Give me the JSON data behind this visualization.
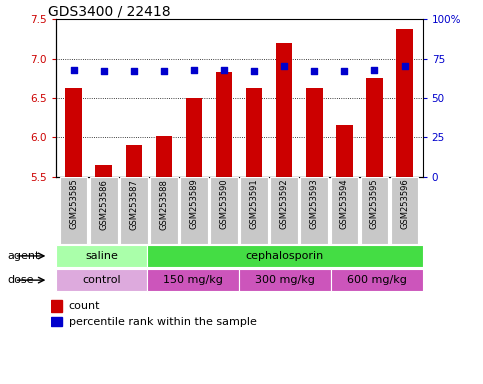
{
  "title": "GDS3400 / 22418",
  "samples": [
    "GSM253585",
    "GSM253586",
    "GSM253587",
    "GSM253588",
    "GSM253589",
    "GSM253590",
    "GSM253591",
    "GSM253592",
    "GSM253593",
    "GSM253594",
    "GSM253595",
    "GSM253596"
  ],
  "count_values": [
    6.62,
    5.65,
    5.9,
    6.02,
    6.5,
    6.83,
    6.62,
    7.2,
    6.62,
    6.15,
    6.75,
    7.38
  ],
  "percentile_values": [
    68,
    67,
    67,
    67,
    68,
    68,
    67,
    70,
    67,
    67,
    68,
    70
  ],
  "ylim_left": [
    5.5,
    7.5
  ],
  "ylim_right": [
    0,
    100
  ],
  "yticks_left": [
    5.5,
    6.0,
    6.5,
    7.0,
    7.5
  ],
  "yticks_right": [
    0,
    25,
    50,
    75,
    100
  ],
  "ytick_labels_right": [
    "0",
    "25",
    "50",
    "75",
    "100%"
  ],
  "bar_color": "#cc0000",
  "dot_color": "#0000cc",
  "bg_color": "#ffffff",
  "title_fontsize": 10,
  "agent_groups": [
    {
      "label": "saline",
      "start": 0,
      "end": 3,
      "color": "#aaffaa"
    },
    {
      "label": "cephalosporin",
      "start": 3,
      "end": 12,
      "color": "#44dd44"
    }
  ],
  "dose_groups": [
    {
      "label": "control",
      "start": 0,
      "end": 3,
      "color": "#ddaadd"
    },
    {
      "label": "150 mg/kg",
      "start": 3,
      "end": 6,
      "color": "#cc66bb"
    },
    {
      "label": "300 mg/kg",
      "start": 6,
      "end": 9,
      "color": "#cc66bb"
    },
    {
      "label": "600 mg/kg",
      "start": 9,
      "end": 12,
      "color": "#cc66bb"
    }
  ],
  "legend_count_label": "count",
  "legend_pct_label": "percentile rank within the sample",
  "xlabel_agent": "agent",
  "xlabel_dose": "dose",
  "tick_bg_color": "#c8c8c8",
  "bar_width": 0.55
}
